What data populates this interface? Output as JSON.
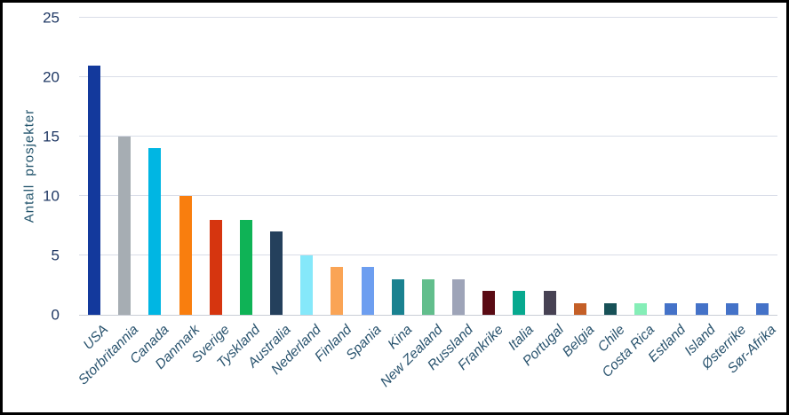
{
  "figure": {
    "background_color": "#ffffff",
    "frame_border_color": "#000000",
    "gridline_color": "#d9dde8",
    "axis_line_color": "#c9cdd6",
    "tick_text_color": "#1f3864",
    "label_text_color": "#29536e"
  },
  "chart_data": {
    "type": "bar",
    "title": "",
    "xlabel": "",
    "ylabel": "Antall prosjekter",
    "ylim": [
      0,
      25
    ],
    "yticks": [
      0,
      5,
      10,
      15,
      20,
      25
    ],
    "grid": true,
    "legend": false,
    "categories": [
      "USA",
      "Storbritannia",
      "Canada",
      "Danmark",
      "Sverige",
      "Tyskland",
      "Australia",
      "Nederland",
      "Finland",
      "Spania",
      "Kina",
      "New Zealand",
      "Russland",
      "Frankrike",
      "Italia",
      "Portugal",
      "Belgia",
      "Chile",
      "Costa Rica",
      "Estland",
      "Island",
      "Østerrike",
      "Sør-Afrika"
    ],
    "values": [
      21,
      15,
      14,
      10,
      8,
      8,
      7,
      5,
      4,
      4,
      3,
      3,
      3,
      2,
      2,
      2,
      1,
      1,
      1,
      1,
      1,
      1,
      1
    ],
    "bar_colors": [
      "#13399c",
      "#a6adb3",
      "#00b6e3",
      "#f97e0e",
      "#d6350f",
      "#0fb356",
      "#24405c",
      "#85e8fa",
      "#faa455",
      "#6d9ef0",
      "#1a8290",
      "#62be8c",
      "#9ea4b8",
      "#5a0b14",
      "#07a98f",
      "#474253",
      "#c45f27",
      "#175157",
      "#85eeb7",
      "#4472c8",
      "#4472c8",
      "#4472c8",
      "#4472c8"
    ]
  }
}
